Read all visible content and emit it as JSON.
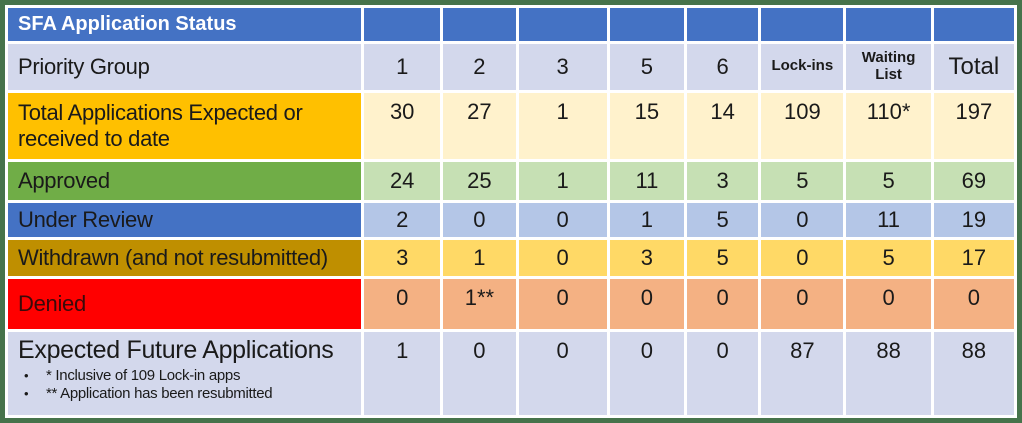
{
  "title": "SFA Application Status",
  "header": {
    "priority_label": "Priority Group",
    "columns": [
      "1",
      "2",
      "3",
      "5",
      "6",
      "Lock-ins",
      "Waiting List",
      "Total"
    ]
  },
  "rows": [
    {
      "label": "Total Applications Expected or received to date",
      "values": [
        "30",
        "27",
        "1",
        "15",
        "14",
        "109",
        "110*",
        "197"
      ]
    },
    {
      "label": "Approved",
      "values": [
        "24",
        "25",
        "1",
        "11",
        "3",
        "5",
        "5",
        "69"
      ]
    },
    {
      "label": "Under Review",
      "values": [
        "2",
        "0",
        "0",
        "1",
        "5",
        "0",
        "11",
        "19"
      ]
    },
    {
      "label": "Withdrawn (and not resubmitted)",
      "values": [
        "3",
        "1",
        "0",
        "3",
        "5",
        "0",
        "5",
        "17"
      ]
    },
    {
      "label": "Denied",
      "values": [
        "0",
        "1**",
        "0",
        "0",
        "0",
        "0",
        "0",
        "0"
      ]
    },
    {
      "label": "Expected Future Applications",
      "values": [
        "1",
        "0",
        "0",
        "0",
        "0",
        "87",
        "88",
        "88"
      ]
    }
  ],
  "footnotes": [
    "* Inclusive of 109 Lock-in apps",
    "** Application has been resubmitted"
  ],
  "colors": {
    "frame_border": "#46734b",
    "title_bar": "#4472c4",
    "header_row": "#d3d8ec",
    "total_label": "#ffc000",
    "total_cells": "#fff2cc",
    "approved_label": "#70ad47",
    "approved_cells": "#c6e0b4",
    "review_label": "#4472c4",
    "review_cells": "#b4c6e7",
    "withdrawn_label": "#bf8f00",
    "withdrawn_cells": "#ffd966",
    "denied_label": "#ff0000",
    "denied_cells": "#f4b183",
    "future_row": "#d3d8ec"
  }
}
